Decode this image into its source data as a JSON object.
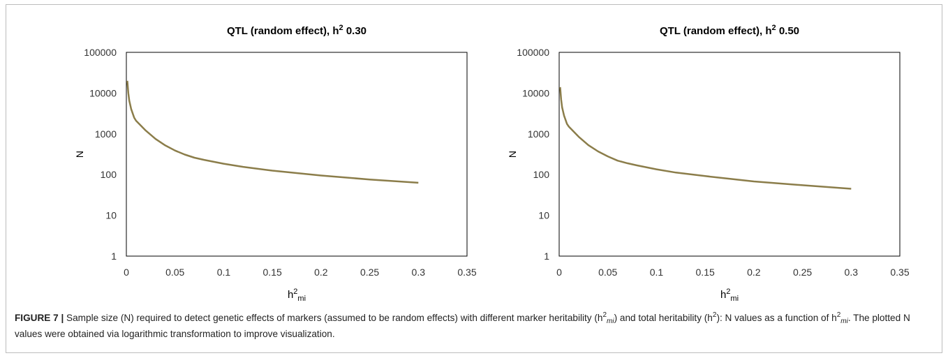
{
  "chart_data": [
    {
      "type": "line",
      "title": "QTL (random effect), h",
      "title_sup": "2",
      "title_suffix": " 0.30",
      "xlabel": "h",
      "xlabel_sup": "2",
      "xlabel_sub": "mi",
      "ylabel": "N",
      "y_scale": "log",
      "xlim": [
        0,
        0.35
      ],
      "ylim": [
        1,
        100000
      ],
      "x_ticks": [
        "0",
        "0.05",
        "0.1",
        "0.15",
        "0.2",
        "0.25",
        "0.3",
        "0.35"
      ],
      "y_ticks": [
        "1",
        "10",
        "100",
        "1000",
        "10000",
        "100000"
      ],
      "grid": false,
      "line_color": "#8b7d4a",
      "series": [
        {
          "x": [
            0.001,
            0.002,
            0.003,
            0.005,
            0.008,
            0.01,
            0.02,
            0.03,
            0.04,
            0.05,
            0.06,
            0.07,
            0.08,
            0.1,
            0.12,
            0.15,
            0.2,
            0.25,
            0.3
          ],
          "values": [
            20000,
            10000,
            6500,
            4000,
            2500,
            2100,
            1200,
            750,
            520,
            390,
            310,
            260,
            230,
            185,
            155,
            125,
            95,
            76,
            63
          ]
        }
      ]
    },
    {
      "type": "line",
      "title": "QTL (random effect), h",
      "title_sup": "2",
      "title_suffix": " 0.50",
      "xlabel": "h",
      "xlabel_sup": "2",
      "xlabel_sub": "mi",
      "ylabel": "N",
      "y_scale": "log",
      "xlim": [
        0,
        0.35
      ],
      "ylim": [
        1,
        100000
      ],
      "x_ticks": [
        "0",
        "0.05",
        "0.1",
        "0.15",
        "0.2",
        "0.25",
        "0.3",
        "0.35"
      ],
      "y_ticks": [
        "1",
        "10",
        "100",
        "1000",
        "10000",
        "100000"
      ],
      "grid": false,
      "line_color": "#8b7d4a",
      "series": [
        {
          "x": [
            0.001,
            0.002,
            0.003,
            0.005,
            0.008,
            0.01,
            0.02,
            0.03,
            0.04,
            0.05,
            0.06,
            0.07,
            0.08,
            0.1,
            0.12,
            0.15,
            0.2,
            0.25,
            0.3
          ],
          "values": [
            14000,
            7000,
            4500,
            2800,
            1750,
            1500,
            850,
            530,
            370,
            280,
            220,
            190,
            168,
            135,
            112,
            92,
            68,
            55,
            45
          ]
        }
      ]
    }
  ],
  "caption": {
    "label": "FIGURE 7 |",
    "p1": " Sample size (N) required to detect genetic effects of markers (assumed to be random effects) with different marker heritability (h",
    "sup": "2",
    "sub": "mi",
    "p2": ") and total heritability (h",
    "p3": "): N values as a function of h",
    "p4": ". The plotted N values were obtained via logarithmic transformation to improve visualization."
  }
}
